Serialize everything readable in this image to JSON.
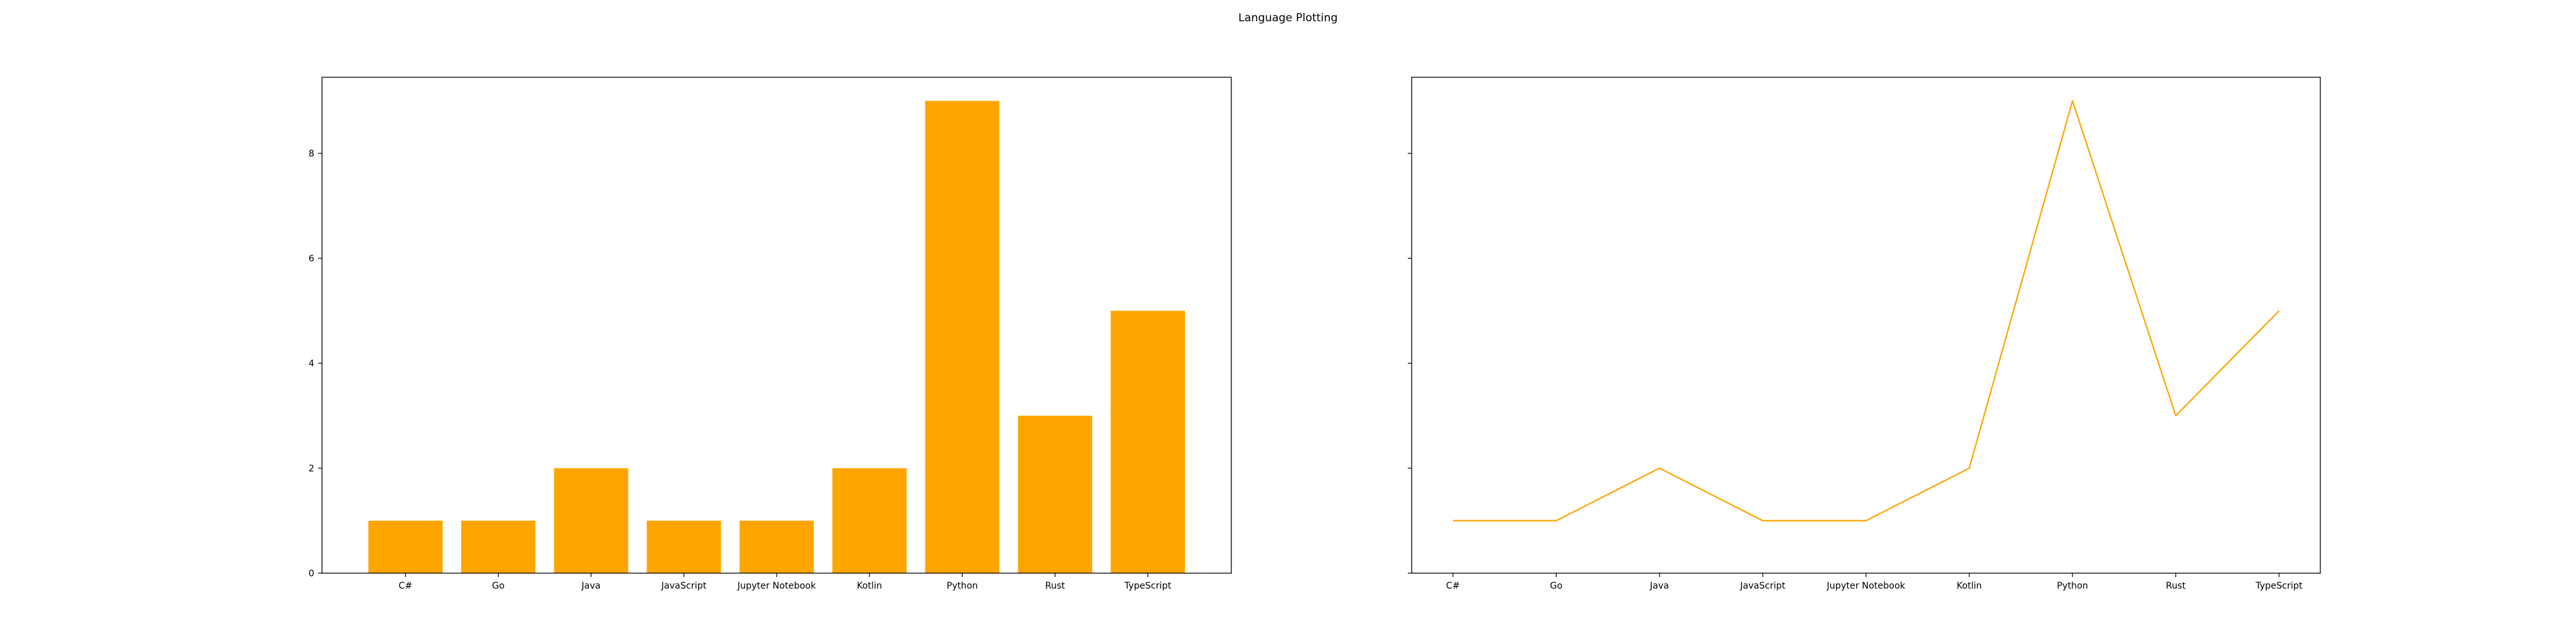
{
  "figure": {
    "suptitle": "Language Plotting"
  },
  "chart_data": [
    {
      "type": "bar",
      "categories": [
        "C#",
        "Go",
        "Java",
        "JavaScript",
        "Jupyter Notebook",
        "Kotlin",
        "Python",
        "Rust",
        "TypeScript"
      ],
      "values": [
        1,
        1,
        2,
        1,
        1,
        2,
        9,
        3,
        5
      ],
      "color": "#ffa500",
      "ylim": [
        0,
        9.45
      ],
      "yticks": [
        0,
        2,
        4,
        6,
        8
      ],
      "show_ytick_labels": true,
      "grid": false
    },
    {
      "type": "line",
      "categories": [
        "C#",
        "Go",
        "Java",
        "JavaScript",
        "Jupyter Notebook",
        "Kotlin",
        "Python",
        "Rust",
        "TypeScript"
      ],
      "values": [
        1,
        1,
        2,
        1,
        1,
        2,
        9,
        3,
        5
      ],
      "color": "#ffa500",
      "ylim": [
        0,
        9.45
      ],
      "yticks": [
        0,
        2,
        4,
        6,
        8
      ],
      "show_ytick_labels": false,
      "shared_y": true,
      "grid": false
    }
  ]
}
